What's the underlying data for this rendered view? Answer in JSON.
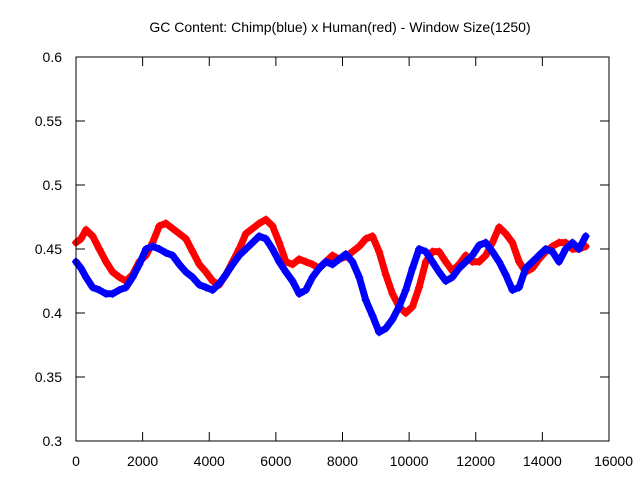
{
  "chart_data": {
    "type": "line",
    "title": "GC Content: Chimp(blue) x Human(red) - Window Size(1250)",
    "xlabel": "",
    "ylabel": "",
    "xlim": [
      0,
      16000
    ],
    "ylim": [
      0.3,
      0.6
    ],
    "x_ticks": [
      0,
      2000,
      4000,
      6000,
      8000,
      10000,
      12000,
      14000,
      16000
    ],
    "y_ticks": [
      0.3,
      0.35,
      0.4,
      0.45,
      0.5,
      0.55,
      0.6
    ],
    "x_tick_labels": [
      "0",
      "2000",
      "4000",
      "6000",
      "8000",
      "10000",
      "12000",
      "14000",
      "16000"
    ],
    "y_tick_labels": [
      "0.3",
      "0.35",
      "0.4",
      "0.45",
      "0.5",
      "0.55",
      "0.6"
    ],
    "grid": false,
    "legend": "none",
    "series": [
      {
        "color": "#ff0000",
        "x": [
          0,
          150,
          300,
          500,
          700,
          900,
          1100,
          1300,
          1500,
          1700,
          1900,
          2100,
          2300,
          2500,
          2700,
          2900,
          3100,
          3300,
          3500,
          3700,
          3900,
          4100,
          4300,
          4500,
          4700,
          4900,
          5100,
          5300,
          5500,
          5700,
          5900,
          6100,
          6300,
          6500,
          6700,
          6900,
          7100,
          7300,
          7500,
          7700,
          7900,
          8100,
          8300,
          8500,
          8700,
          8900,
          9100,
          9300,
          9500,
          9700,
          9900,
          10100,
          10300,
          10500,
          10700,
          10900,
          11100,
          11300,
          11500,
          11700,
          11900,
          12100,
          12300,
          12500,
          12700,
          12900,
          13100,
          13300,
          13500,
          13700,
          13900,
          14100,
          14300,
          14500,
          14700,
          14900,
          15100,
          15300
        ],
        "y": [
          0.455,
          0.458,
          0.465,
          0.46,
          0.45,
          0.44,
          0.432,
          0.428,
          0.425,
          0.43,
          0.44,
          0.445,
          0.455,
          0.468,
          0.47,
          0.466,
          0.462,
          0.458,
          0.448,
          0.438,
          0.432,
          0.425,
          0.422,
          0.43,
          0.44,
          0.45,
          0.462,
          0.466,
          0.47,
          0.473,
          0.468,
          0.455,
          0.44,
          0.438,
          0.442,
          0.44,
          0.438,
          0.435,
          0.44,
          0.445,
          0.442,
          0.444,
          0.448,
          0.452,
          0.458,
          0.46,
          0.448,
          0.43,
          0.415,
          0.405,
          0.4,
          0.405,
          0.42,
          0.44,
          0.448,
          0.448,
          0.44,
          0.433,
          0.438,
          0.445,
          0.44,
          0.44,
          0.445,
          0.455,
          0.467,
          0.462,
          0.455,
          0.44,
          0.432,
          0.435,
          0.442,
          0.448,
          0.452,
          0.455,
          0.455,
          0.45,
          0.45,
          0.452
        ]
      },
      {
        "color": "#0000ff",
        "x": [
          0,
          150,
          300,
          500,
          700,
          900,
          1100,
          1300,
          1500,
          1700,
          1900,
          2100,
          2300,
          2500,
          2700,
          2900,
          3100,
          3300,
          3500,
          3700,
          3900,
          4100,
          4300,
          4500,
          4700,
          4900,
          5100,
          5300,
          5500,
          5700,
          5900,
          6100,
          6300,
          6500,
          6700,
          6900,
          7100,
          7300,
          7500,
          7700,
          7900,
          8100,
          8300,
          8500,
          8700,
          8900,
          9100,
          9300,
          9500,
          9700,
          9900,
          10100,
          10300,
          10500,
          10700,
          10900,
          11100,
          11300,
          11500,
          11700,
          11900,
          12100,
          12300,
          12500,
          12700,
          12900,
          13100,
          13300,
          13500,
          13700,
          13900,
          14100,
          14300,
          14500,
          14700,
          14900,
          15100,
          15300
        ],
        "y": [
          0.44,
          0.435,
          0.428,
          0.42,
          0.418,
          0.415,
          0.415,
          0.418,
          0.42,
          0.428,
          0.438,
          0.45,
          0.452,
          0.45,
          0.447,
          0.445,
          0.438,
          0.432,
          0.428,
          0.422,
          0.42,
          0.418,
          0.423,
          0.43,
          0.438,
          0.445,
          0.45,
          0.455,
          0.46,
          0.458,
          0.45,
          0.44,
          0.432,
          0.425,
          0.415,
          0.418,
          0.428,
          0.435,
          0.44,
          0.438,
          0.442,
          0.446,
          0.44,
          0.428,
          0.41,
          0.398,
          0.385,
          0.388,
          0.395,
          0.405,
          0.418,
          0.435,
          0.45,
          0.448,
          0.44,
          0.432,
          0.425,
          0.428,
          0.435,
          0.44,
          0.445,
          0.453,
          0.455,
          0.448,
          0.44,
          0.43,
          0.418,
          0.42,
          0.435,
          0.44,
          0.445,
          0.45,
          0.448,
          0.44,
          0.45,
          0.455,
          0.45,
          0.46
        ]
      }
    ]
  }
}
